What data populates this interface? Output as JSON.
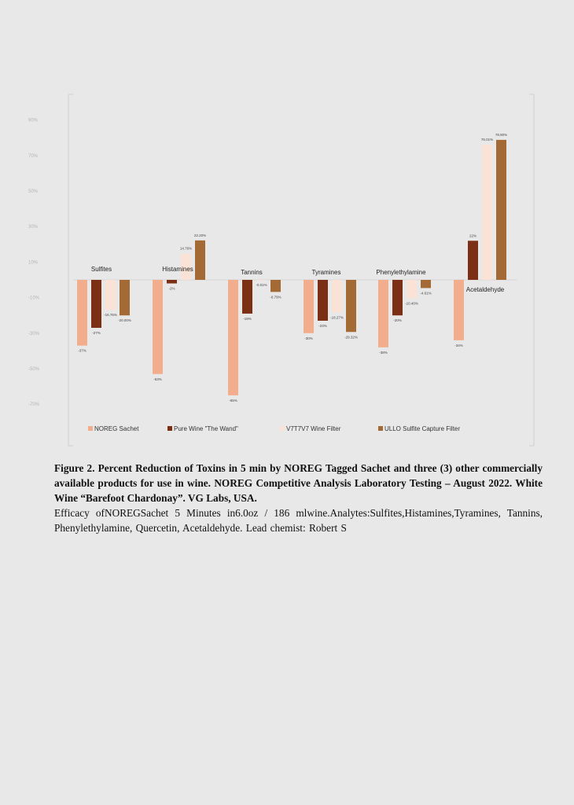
{
  "chart_data": {
    "type": "bar",
    "categories": [
      "Sulfites",
      "Histamines",
      "Tannins",
      "Tyramines",
      "Phenylethylamine",
      "Acetaldehyde"
    ],
    "series": [
      {
        "name": "NOREG Sachet",
        "color": "#f2ae8c",
        "values": [
          -37,
          -53,
          -65,
          -30,
          -38,
          -34
        ],
        "labels": [
          "-37%",
          "-53%",
          "-65%",
          "-30%",
          "-38%",
          "-34%"
        ]
      },
      {
        "name": "Pure Wine \"The Wand\"",
        "color": "#7b2f14",
        "values": [
          -27,
          -2,
          -19,
          -23,
          -20,
          22
        ],
        "labels": [
          "-27%",
          "-2%",
          "-19%",
          "-23%",
          "-20%",
          "22%"
        ]
      },
      {
        "name": "V7T7V7 Wine Filter",
        "color": "#fbe2d7",
        "values": [
          -16.76,
          14.76,
          -0.01,
          -18.27,
          -10.4,
          76.01
        ],
        "labels": [
          "-16.76%",
          "14.76%",
          "-0.01%",
          "-18.27%",
          "-10.40%",
          "76.01%"
        ]
      },
      {
        "name": "ULLO Sulfite Capture Filter",
        "color": "#a36a35",
        "values": [
          -20,
          22.2,
          -6.79,
          -29.32,
          -4.61,
          78.8
        ],
        "labels": [
          "-20.00%",
          "22.20%",
          "-6.79%",
          "-29.32%",
          "-4.61%",
          "78.80%"
        ]
      }
    ],
    "yticks": [
      "90%",
      "70%",
      "50%",
      "30%",
      "10%",
      "-10%",
      "-30%",
      "-50%",
      "-70%"
    ],
    "ytick_values": [
      90,
      70,
      50,
      30,
      10,
      -10,
      -30,
      -50,
      -70
    ],
    "ylim": [
      -70,
      90
    ],
    "grid": false,
    "legend": "bottom",
    "title": "",
    "xlabel": "",
    "ylabel": ""
  },
  "caption": {
    "bold": "Figure 2. Percent Reduction of Toxins in 5 min by NOREG Tagged Sachet and three (3) other commercially available products for use in wine. NOREG Competitive Analysis Laboratory Testing – August 2022. White Wine “Barefoot Chardonay”. VG Labs, USA.",
    "body": "Efficacy ofNOREGSachet 5 Minutes in6.0oz / 186 mlwine.Analytes:Sulfites,Histamines,Tyramines, Tannins, Phenylethylamine, Quercetin, Acetaldehyde. Lead chemist: Robert S"
  }
}
